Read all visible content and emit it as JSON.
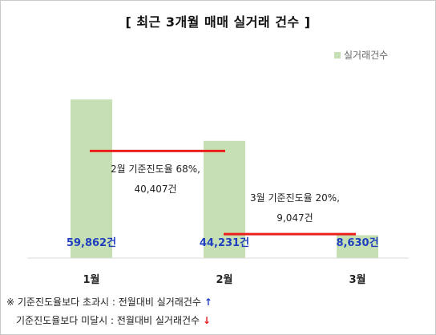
{
  "chart_data": {
    "type": "bar",
    "title": "[ 최근 3개월 매매 실거래 건수 ]",
    "categories": [
      "1월",
      "2월",
      "3월"
    ],
    "series": [
      {
        "name": "실거래건수",
        "values": [
          59862,
          44231,
          8630
        ],
        "color": "#c6e0b4"
      }
    ],
    "value_labels": [
      "59,862건",
      "44,231건",
      "8,630건"
    ],
    "ylim": [
      0,
      72000
    ],
    "reference_lines": [
      {
        "label_line1": "2월 기준진도율 68%,",
        "label_line2": "40,407건",
        "value": 40407,
        "color": "#e8211d"
      },
      {
        "label_line1": "3월 기준진도율 20%,",
        "label_line2": "9,047건",
        "value": 9047,
        "color": "#e8211d"
      }
    ],
    "legend_position": "top-right",
    "grid": false
  },
  "legend": {
    "label": "실거래건수"
  },
  "notes": [
    {
      "text": "※ 기준진도율보다 초과시 : 전월대비 실거래건수",
      "arrow": "↑"
    },
    {
      "text": "기준진도율보다 미달시 : 전월대비 실거래건수",
      "arrow": "↓"
    }
  ],
  "colors": {
    "bar": "#c6e0b4",
    "ref_line": "#e8211d",
    "value_label": "#1f3fbf"
  }
}
